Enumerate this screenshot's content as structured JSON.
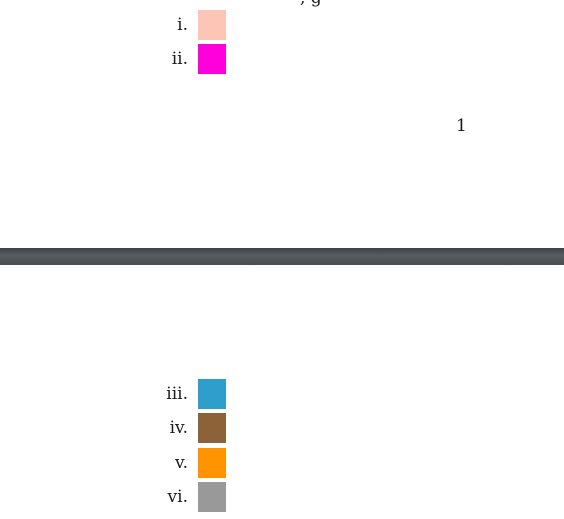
{
  "page1": {
    "cutoff_text": ", g",
    "items": [
      {
        "label": "i.",
        "color": "#FDC5B5"
      },
      {
        "label": "ii.",
        "color": "#FF00DD"
      }
    ],
    "page_number": "1"
  },
  "page2": {
    "items": [
      {
        "label": "iii.",
        "color": "#2E9FCC"
      },
      {
        "label": "iv.",
        "color": "#8C6239"
      },
      {
        "label": "v.",
        "color": "#FF9400"
      },
      {
        "label": "vi.",
        "color": "#999999"
      }
    ]
  }
}
